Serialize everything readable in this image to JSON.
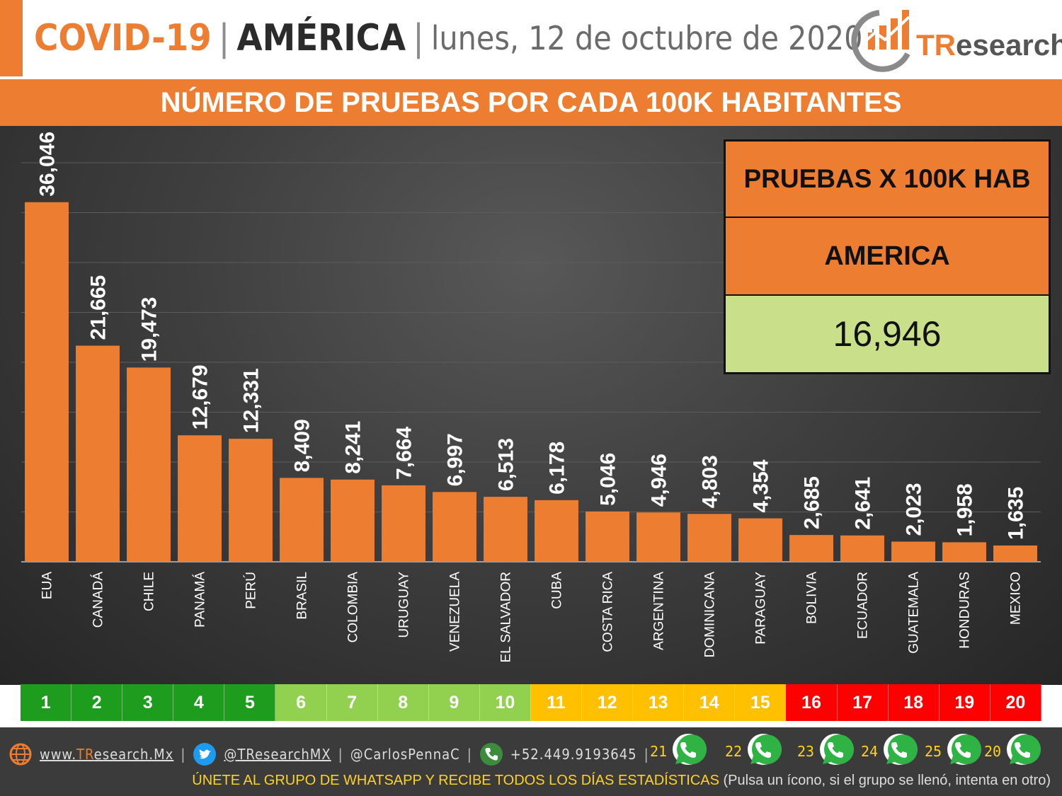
{
  "header": {
    "topic": "COVID-19",
    "separator": "|",
    "region": "AMÉRICA",
    "date": "lunes, 12 de octubre de 2020",
    "logo_prefix": "TR",
    "logo_suffix": "esearch"
  },
  "banner": {
    "title": "NÚMERO DE PRUEBAS POR CADA 100K HABITANTES"
  },
  "summary": {
    "label": "PRUEBAS X 100K HAB",
    "region": "AMERICA",
    "value": "16,946"
  },
  "chart_data": {
    "type": "bar",
    "categories": [
      "EUA",
      "CANADÁ",
      "CHILE",
      "PANAMÁ",
      "PERÚ",
      "BRASIL",
      "COLOMBIA",
      "URUGUAY",
      "VENEZUELA",
      "EL SALVADOR",
      "CUBA",
      "COSTA RICA",
      "ARGENTINA",
      "DOMINICANA",
      "PARAGUAY",
      "BOLIVIA",
      "ECUADOR",
      "GUATEMALA",
      "HONDURAS",
      "MEXICO"
    ],
    "values": [
      36046,
      21665,
      19473,
      12679,
      12331,
      8409,
      8241,
      7664,
      6997,
      6513,
      6178,
      5046,
      4946,
      4803,
      4354,
      2685,
      2641,
      2023,
      1958,
      1635
    ],
    "value_labels": [
      "36,046",
      "21,665",
      "19,473",
      "12,679",
      "12,331",
      "8,409",
      "8,241",
      "7,664",
      "6,997",
      "6,513",
      "6,178",
      "5,046",
      "4,946",
      "4,803",
      "4,354",
      "2,685",
      "2,641",
      "2,023",
      "1,958",
      "1,635"
    ],
    "title": "NÚMERO DE PRUEBAS POR CADA 100K HABITANTES",
    "ylim": [
      0,
      40000
    ],
    "grid": true,
    "bar_color": "#ed7d31"
  },
  "ranking": {
    "labels": [
      "1",
      "2",
      "3",
      "4",
      "5",
      "6",
      "7",
      "8",
      "9",
      "10",
      "11",
      "12",
      "13",
      "14",
      "15",
      "16",
      "17",
      "18",
      "19",
      "20"
    ],
    "colors": [
      "#1e9c1e",
      "#1e9c1e",
      "#1e9c1e",
      "#1e9c1e",
      "#1e9c1e",
      "#92d050",
      "#92d050",
      "#92d050",
      "#92d050",
      "#92d050",
      "#ffc000",
      "#ffc000",
      "#ffc000",
      "#ffc000",
      "#ffc000",
      "#ff0000",
      "#ff0000",
      "#ff0000",
      "#ff0000",
      "#ff0000"
    ]
  },
  "footer": {
    "website_prefix": "www.",
    "website_brand": "TR",
    "website_suffix": "esearch.Mx",
    "twitter": "@TResearchMX",
    "twitter2": "@CarlosPennaC",
    "phone": "+52.449.9193645",
    "pipe": "|",
    "whatsapp_groups": [
      "21",
      "22",
      "23",
      "24",
      "25",
      "20"
    ],
    "cta_main": "ÚNETE AL GRUPO DE WHATSAPP Y RECIBE TODOS LOS DÍAS ESTADÍSTICAS",
    "cta_sub": "(Pulsa un ícono, si el grupo se llenó, intenta en otro)"
  }
}
